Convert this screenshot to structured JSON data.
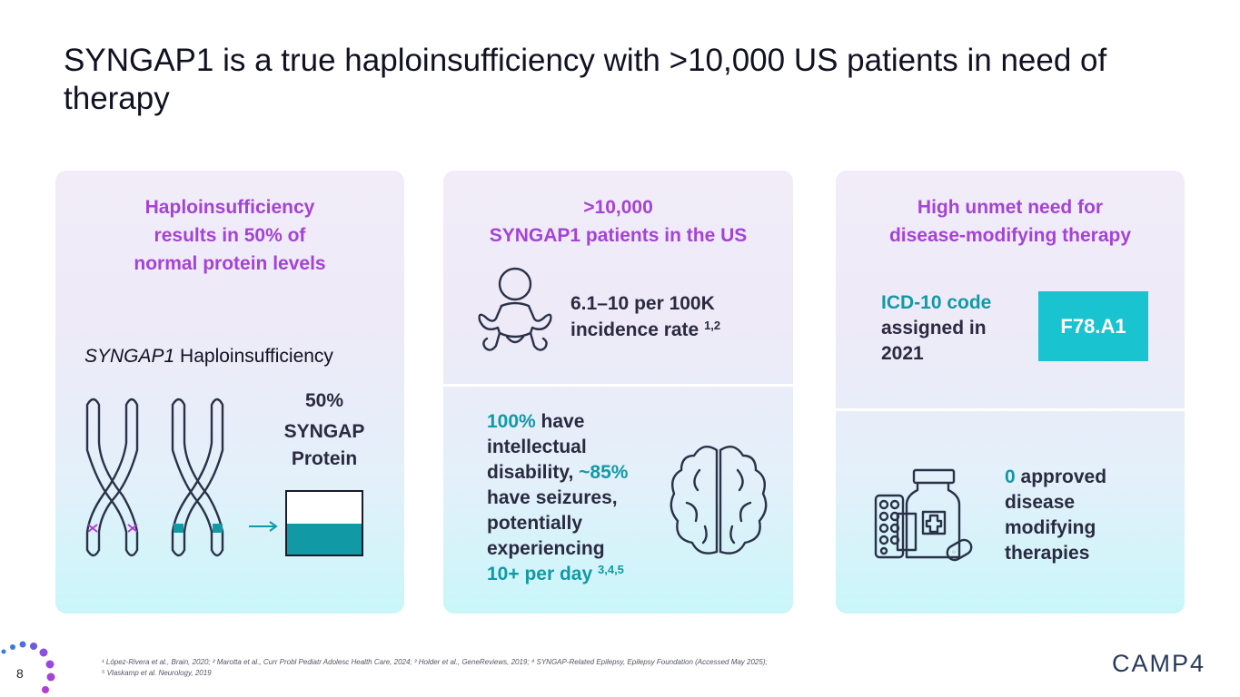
{
  "title": "SYNGAP1 is a true haploinsufficiency with >10,000 US patients in need of therapy",
  "card1": {
    "heading": [
      "Haploinsufficiency",
      "results in 50% of",
      "normal protein levels"
    ],
    "sublabel_italic": "SYNGAP1",
    "sublabel_rest": " Haploinsufficiency",
    "percent": "50%",
    "protein_line1": "SYNGAP",
    "protein_line2": "Protein",
    "protein_level": 0.5
  },
  "card2": {
    "heading": [
      ">10,000",
      "SYNGAP1 patients in the US"
    ],
    "incidence_value": "6.1–10 per 100K",
    "incidence_label": "incidence rate ",
    "incidence_refs": "1,2",
    "stat_pct1": "100%",
    "stat_text1": " have",
    "stat_line2": "intellectual",
    "stat_line3a": "disability, ",
    "stat_pct2": "~85%",
    "stat_line4": "have seizures,",
    "stat_line5": "potentially",
    "stat_line6": "experiencing",
    "stat_line7": "10+ per day ",
    "stat_refs": "3,4,5"
  },
  "card3": {
    "heading": [
      "High unmet need for",
      "disease-modifying therapy"
    ],
    "icd_line1": "ICD-10 code",
    "icd_line2": "assigned in",
    "icd_line3": "2021",
    "code": "F78.A1",
    "approved_count": "0",
    "approved_text": " approved",
    "approved_line2": "disease",
    "approved_line3": "modifying",
    "approved_line4": "therapies"
  },
  "footer": {
    "footnote_line1": "¹ López-Rivera et al., Brain, 2020; ² Marotta et al., Curr Probl Pediatr Adolesc Health Care, 2024; ³ Holder et al., GeneReviews, 2019; ⁴ SYNGAP-Related Epilepsy, Epilepsy Foundation (Accessed May 2025);",
    "footnote_line2": "⁵ Vlaskamp et al. Neurology, 2019",
    "page_number": "8",
    "logo": "CAMP4"
  },
  "colors": {
    "purple": "#a443d6",
    "teal": "#119aa6",
    "code_box": "#19c3cf",
    "dark": "#2a2a40"
  },
  "icons": [
    "chromosome-icon",
    "baby-icon",
    "brain-icon",
    "medication-icon",
    "arrow-right-icon"
  ]
}
